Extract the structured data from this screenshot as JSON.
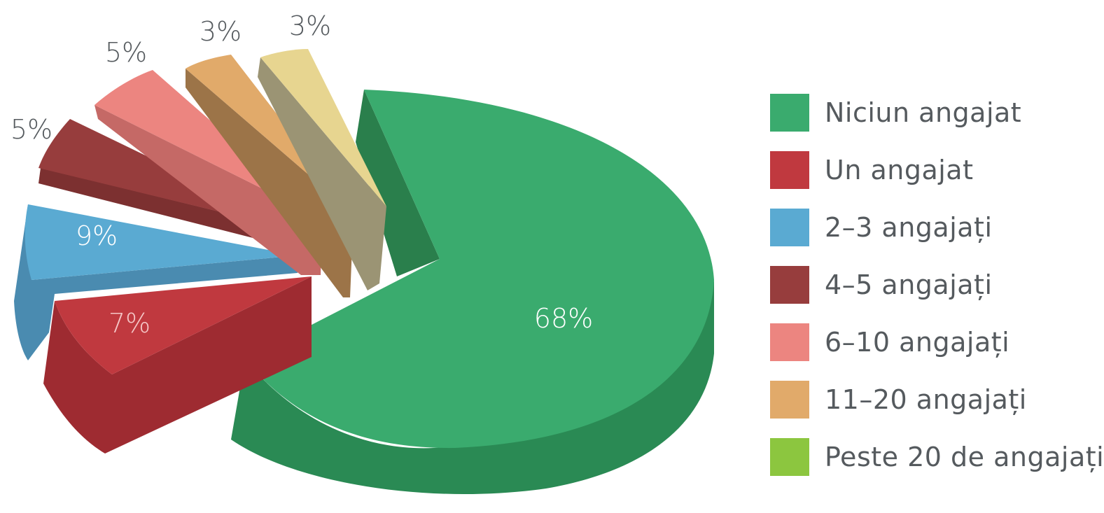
{
  "chart_data": {
    "type": "pie",
    "title": "",
    "categories": [
      "Niciun angajat",
      "Un angajat",
      "2–3 angajați",
      "4–5 angajați",
      "6–10 angajați",
      "11–20 angajați",
      "Peste 20 de angajați"
    ],
    "values": [
      68,
      7,
      9,
      5,
      5,
      3,
      3
    ],
    "value_labels": [
      "68%",
      "7%",
      "9%",
      "5%",
      "5%",
      "3%",
      "3%"
    ],
    "colors": [
      "#3aab6e",
      "#c0393f",
      "#5aaad2",
      "#973d3d",
      "#ec8580",
      "#e1aa6a",
      "#e7d590"
    ],
    "legend_colors": [
      "#3aab6e",
      "#c0393f",
      "#5aaad2",
      "#973d3d",
      "#ec8580",
      "#e1aa6a",
      "#8cc63f"
    ],
    "legend_position": "right",
    "exploded": true,
    "style": "3d"
  }
}
